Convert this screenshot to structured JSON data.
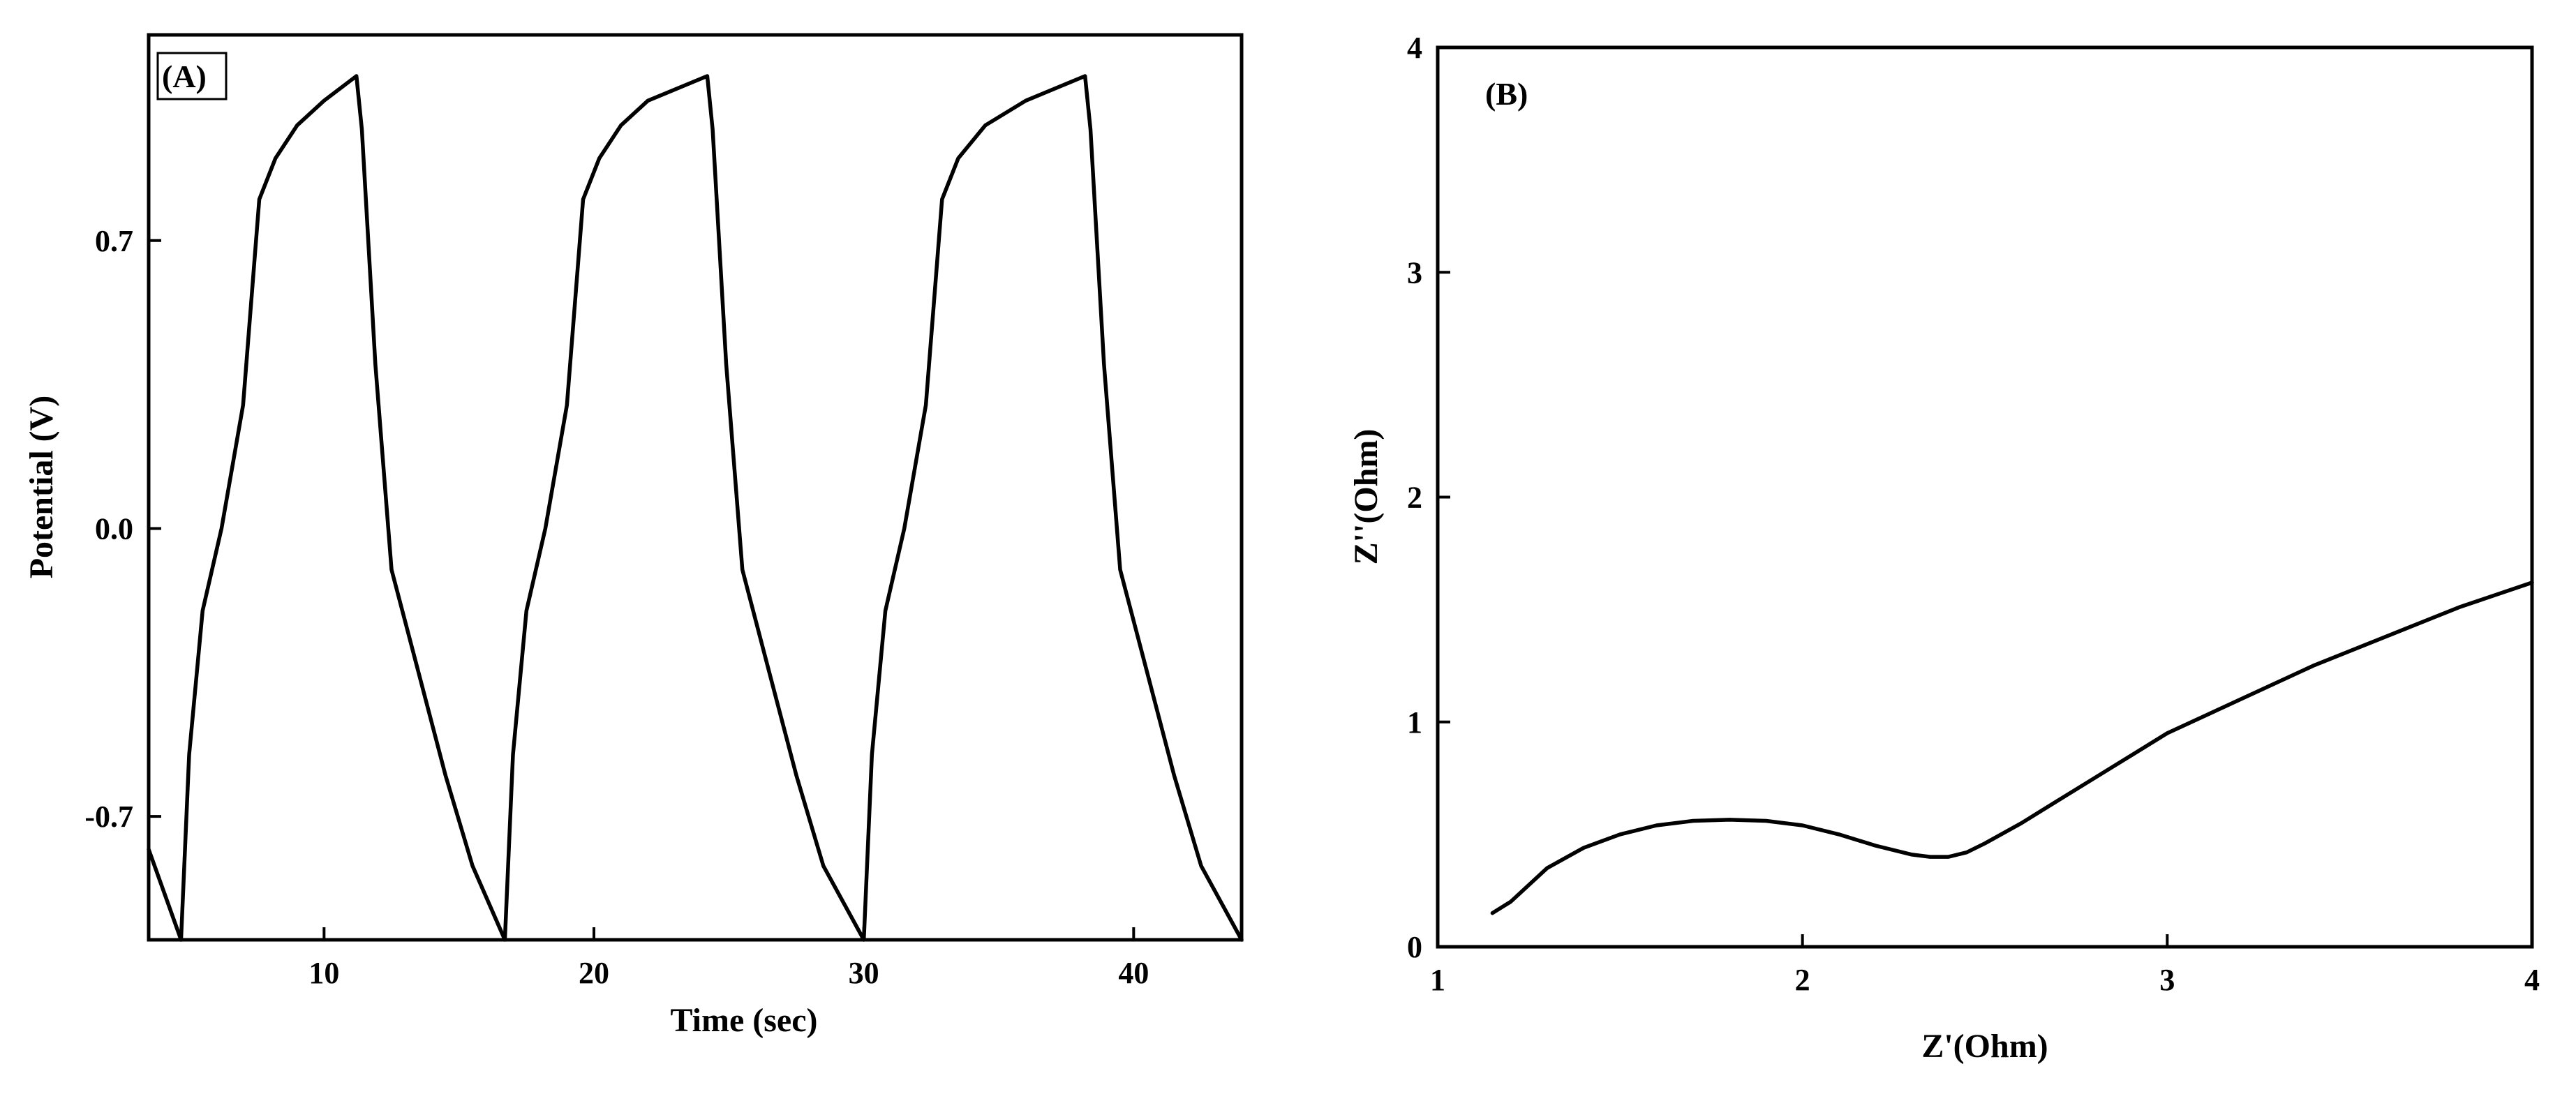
{
  "chart_data": [
    {
      "type": "line",
      "panel_label": "(A)",
      "xlabel": "Time (sec)",
      "ylabel": "Potential (V)",
      "xlim": [
        3.5,
        44
      ],
      "ylim": [
        -1.0,
        1.2
      ],
      "xticks": [
        10,
        20,
        30,
        40
      ],
      "yticks": [
        -0.7,
        0.0,
        0.7
      ],
      "xtick_labels": [
        "10",
        "20",
        "30",
        "40"
      ],
      "ytick_labels": [
        "-0.7",
        "0.0",
        "0.7"
      ],
      "grid": false,
      "panel_label_boxed": true,
      "series": [
        {
          "x": [
            3.5,
            4.7,
            5.0,
            5.5,
            6.2,
            7.0,
            7.6,
            8.2,
            9.0,
            10.0,
            11.2,
            11.4,
            11.9,
            12.5,
            13.5,
            14.5,
            15.5,
            16.7,
            17.0,
            17.5,
            18.2,
            19.0,
            19.6,
            20.2,
            21.0,
            22.0,
            24.2,
            24.4,
            24.9,
            25.5,
            26.5,
            27.5,
            28.5,
            30.0,
            30.3,
            30.8,
            31.5,
            32.3,
            32.9,
            33.5,
            34.5,
            36.0,
            38.2,
            38.4,
            38.9,
            39.5,
            40.5,
            41.5,
            42.5,
            44.0
          ],
          "y": [
            -0.78,
            -1.0,
            -0.55,
            -0.2,
            0.0,
            0.3,
            0.8,
            0.9,
            0.98,
            1.04,
            1.1,
            0.97,
            0.4,
            -0.1,
            -0.35,
            -0.6,
            -0.82,
            -1.0,
            -0.55,
            -0.2,
            0.0,
            0.3,
            0.8,
            0.9,
            0.98,
            1.04,
            1.1,
            0.97,
            0.4,
            -0.1,
            -0.35,
            -0.6,
            -0.82,
            -1.0,
            -0.55,
            -0.2,
            0.0,
            0.3,
            0.8,
            0.9,
            0.98,
            1.04,
            1.1,
            0.97,
            0.4,
            -0.1,
            -0.35,
            -0.6,
            -0.82,
            -1.0
          ],
          "color": "#000000"
        }
      ]
    },
    {
      "type": "line",
      "panel_label": "(B)",
      "xlabel": "Z'(Ohm)",
      "ylabel": "Z''(Ohm)",
      "xlim": [
        1,
        4
      ],
      "ylim": [
        0,
        4
      ],
      "xticks": [
        1,
        2,
        3,
        4
      ],
      "yticks": [
        0,
        1,
        2,
        3,
        4
      ],
      "xtick_labels": [
        "1",
        "2",
        "3",
        "4"
      ],
      "ytick_labels": [
        "0",
        "1",
        "2",
        "3",
        "4"
      ],
      "grid": false,
      "panel_label_boxed": false,
      "series": [
        {
          "x": [
            1.15,
            1.2,
            1.3,
            1.4,
            1.5,
            1.6,
            1.7,
            1.8,
            1.9,
            2.0,
            2.1,
            2.2,
            2.3,
            2.35,
            2.4,
            2.45,
            2.5,
            2.6,
            2.7,
            2.8,
            2.9,
            3.0,
            3.2,
            3.4,
            3.6,
            3.8,
            4.0
          ],
          "y": [
            0.15,
            0.2,
            0.35,
            0.44,
            0.5,
            0.54,
            0.56,
            0.565,
            0.56,
            0.54,
            0.5,
            0.45,
            0.41,
            0.4,
            0.4,
            0.42,
            0.46,
            0.55,
            0.65,
            0.75,
            0.85,
            0.95,
            1.1,
            1.25,
            1.38,
            1.51,
            1.62
          ],
          "color": "#000000"
        }
      ]
    }
  ]
}
